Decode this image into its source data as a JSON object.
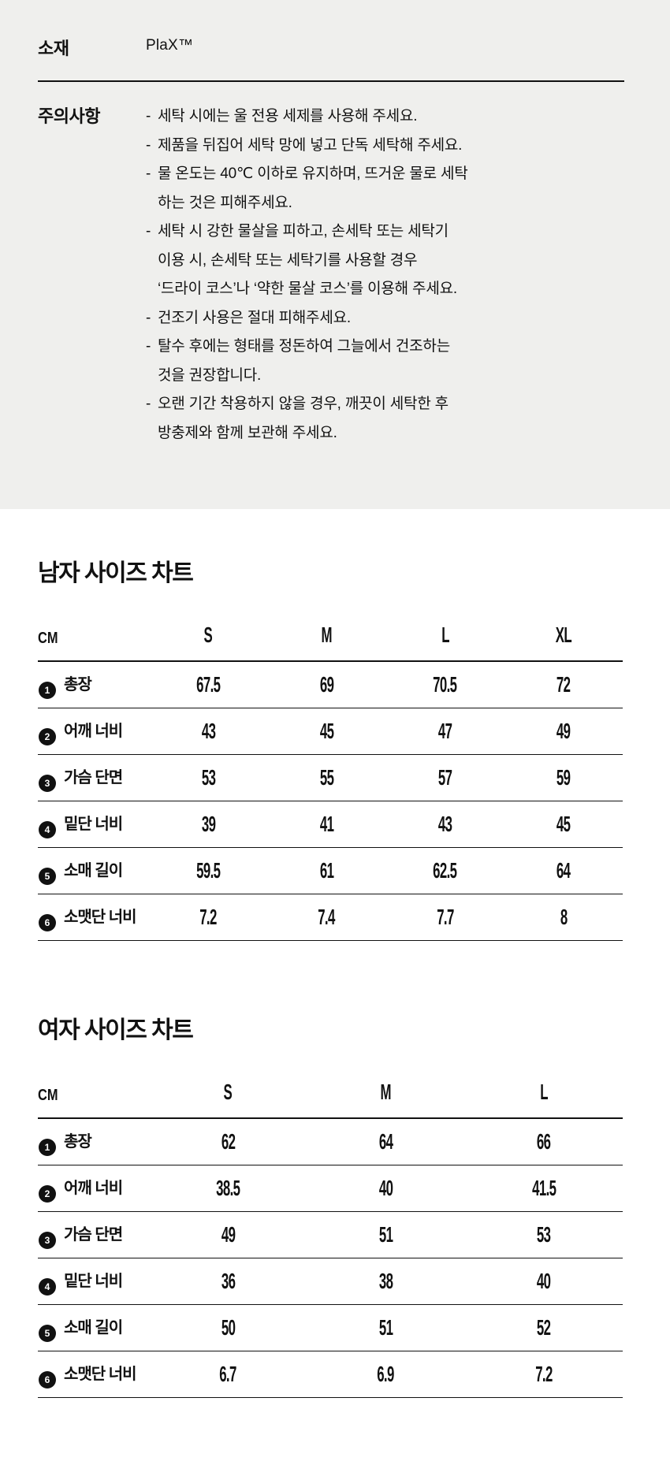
{
  "colors": {
    "info_background": "#efefed",
    "text": "#111111",
    "line": "#111111",
    "badge_background": "#111111",
    "badge_text": "#ffffff"
  },
  "info": {
    "material_label": "소재",
    "material_value": "PlaX™",
    "care_label": "주의사항",
    "dash": "-",
    "care_items": [
      "세탁 시에는 울 전용 세제를 사용해 주세요.",
      "제품을 뒤집어 세탁 망에 넣고 단독 세탁해 주세요.",
      "물 온도는 40℃ 이하로 유지하며, 뜨거운 물로 세탁\n하는 것은 피해주세요.",
      "세탁 시 강한 물살을 피하고, 손세탁 또는 세탁기\n이용 시, 손세탁 또는 세탁기를 사용할 경우\n‘드라이 코스’나 ‘약한 물살 코스’를 이용해 주세요.",
      "건조기 사용은 절대 피해주세요.",
      "탈수 후에는 형태를 정돈하여 그늘에서 건조하는\n것을 권장합니다.",
      "오랜 기간 착용하지 않을 경우, 깨끗이 세탁한 후\n방충제와 함께 보관해 주세요."
    ]
  },
  "men_chart": {
    "title": "남자 사이즈 차트",
    "unit": "CM",
    "sizes": [
      "S",
      "M",
      "L",
      "XL"
    ],
    "rows": [
      {
        "num": "1",
        "label": "총장",
        "values": [
          "67.5",
          "69",
          "70.5",
          "72"
        ]
      },
      {
        "num": "2",
        "label": "어깨 너비",
        "values": [
          "43",
          "45",
          "47",
          "49"
        ]
      },
      {
        "num": "3",
        "label": "가슴 단면",
        "values": [
          "53",
          "55",
          "57",
          "59"
        ]
      },
      {
        "num": "4",
        "label": "밑단 너비",
        "values": [
          "39",
          "41",
          "43",
          "45"
        ]
      },
      {
        "num": "5",
        "label": "소매 길이",
        "values": [
          "59.5",
          "61",
          "62.5",
          "64"
        ]
      },
      {
        "num": "6",
        "label": "소맷단 너비",
        "values": [
          "7.2",
          "7.4",
          "7.7",
          "8"
        ]
      }
    ]
  },
  "women_chart": {
    "title": "여자 사이즈 차트",
    "unit": "CM",
    "sizes": [
      "S",
      "M",
      "L"
    ],
    "rows": [
      {
        "num": "1",
        "label": "총장",
        "values": [
          "62",
          "64",
          "66"
        ]
      },
      {
        "num": "2",
        "label": "어깨 너비",
        "values": [
          "38.5",
          "40",
          "41.5"
        ]
      },
      {
        "num": "3",
        "label": "가슴 단면",
        "values": [
          "49",
          "51",
          "53"
        ]
      },
      {
        "num": "4",
        "label": "밑단 너비",
        "values": [
          "36",
          "38",
          "40"
        ]
      },
      {
        "num": "5",
        "label": "소매 길이",
        "values": [
          "50",
          "51",
          "52"
        ]
      },
      {
        "num": "6",
        "label": "소맷단 너비",
        "values": [
          "6.7",
          "6.9",
          "7.2"
        ]
      }
    ]
  }
}
